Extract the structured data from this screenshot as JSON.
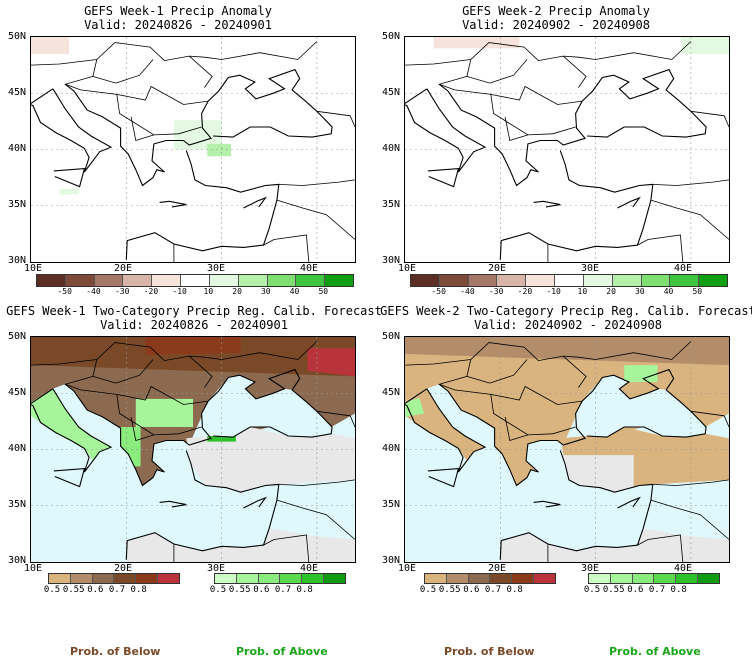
{
  "panels": {
    "top_left": {
      "title": "GEFS Week-1 Precip Anomaly",
      "valid": "Valid: 20240826 - 20240901"
    },
    "top_right": {
      "title": "GEFS Week-2 Precip Anomaly",
      "valid": "Valid: 20240902 - 20240908"
    },
    "bottom_left": {
      "title": "GEFS Week-1 Two-Category Precip Reg. Calib. Forecast",
      "valid": "Valid: 20240826 - 20240901"
    },
    "bottom_right": {
      "title": "GEFS Week-2 Two-Category Precip Reg. Calib. Forecast",
      "valid": "Valid: 20240902 - 20240908"
    }
  },
  "axes": {
    "lat_labels": [
      "50N",
      "45N",
      "40N",
      "35N",
      "30N"
    ],
    "lon_labels": [
      "10E",
      "20E",
      "30E",
      "40E"
    ]
  },
  "anomaly_colorbar": {
    "labels": [
      "-50",
      "-40",
      "-30",
      "-20",
      "-10",
      "10",
      "20",
      "30",
      "40",
      "50"
    ],
    "colors": [
      "#5a2e22",
      "#7d4a3a",
      "#a57768",
      "#d9b5a9",
      "#f5e3dc",
      "#ffffff",
      "#e4f9e1",
      "#b4f0aa",
      "#7ee070",
      "#3dc63d",
      "#0e9e12"
    ]
  },
  "prob_below_colorbar": {
    "labels": [
      "0.5",
      "0.55",
      "0.6",
      "0.7",
      "0.8"
    ],
    "colors": [
      "#d9b47e",
      "#b38c6a",
      "#8c6a50",
      "#7a4a28",
      "#8b3a1c",
      "#b8333a"
    ]
  },
  "prob_above_colorbar": {
    "labels": [
      "0.5",
      "0.55",
      "0.6",
      "0.7",
      "0.8"
    ],
    "colors": [
      "#ccffc4",
      "#a6f59a",
      "#8aec7c",
      "#5ad84e",
      "#2ec22a",
      "#109a10"
    ]
  },
  "legend": {
    "below_caption": "Prob. of Below",
    "above_caption": "Prob. of Above",
    "below_color": "#7a4a28",
    "above_color": "#1aa51a"
  },
  "colors": {
    "sea_light_blue": "#dff8fb",
    "dry_gray": "#e8e8e8",
    "coast": "#000000"
  }
}
